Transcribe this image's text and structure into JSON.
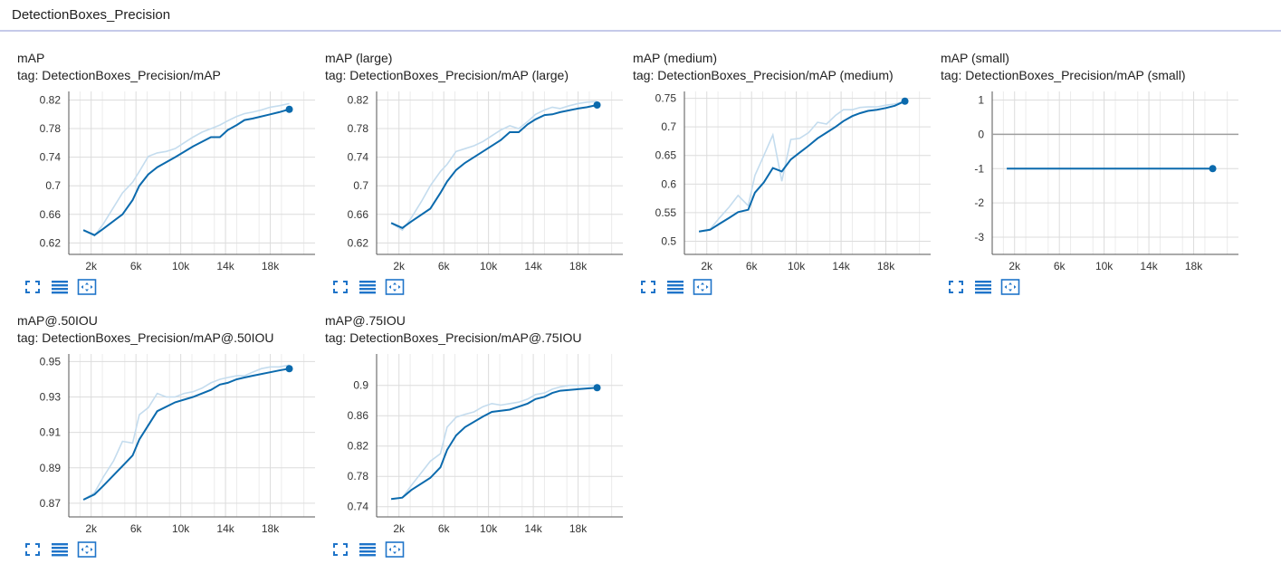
{
  "group": {
    "title": "DetectionBoxes_Precision"
  },
  "colors": {
    "line": "#0b6aad",
    "raw_line": "#c4dcee",
    "grid": "#dcdcdc",
    "axis": "#555555",
    "icon": "#1f74c9",
    "header_border": "#c5cae9"
  },
  "toolbar_icons": [
    "fullscreen-icon",
    "list-icon",
    "fit-domain-icon"
  ],
  "chart_data": [
    {
      "type": "line",
      "title": "mAP",
      "tag": "tag: DetectionBoxes_Precision/mAP",
      "xlim": [
        0,
        22000
      ],
      "ylim": [
        0.604,
        0.832
      ],
      "x_ticks": [
        2000,
        6000,
        10000,
        14000,
        18000
      ],
      "x_tick_labels": [
        "2k",
        "6k",
        "10k",
        "14k",
        "18k"
      ],
      "y_ticks": [
        0.62,
        0.66,
        0.7,
        0.74,
        0.78,
        0.82
      ],
      "y_tick_labels": [
        "0.62",
        "0.66",
        "0.7",
        "0.74",
        "0.78",
        "0.82"
      ],
      "series": [
        {
          "x": [
            1300,
            2300,
            3100,
            4000,
            4800,
            5700,
            6300,
            7100,
            7900,
            8700,
            9500,
            10300,
            11100,
            11900,
            12700,
            13500,
            14200,
            15000,
            15700,
            16400,
            17200,
            18000,
            18800,
            19700
          ],
          "values": [
            0.638,
            0.63,
            0.647,
            0.67,
            0.69,
            0.705,
            0.72,
            0.741,
            0.746,
            0.748,
            0.752,
            0.76,
            0.768,
            0.775,
            0.78,
            0.785,
            0.791,
            0.797,
            0.801,
            0.803,
            0.806,
            0.81,
            0.812,
            0.815
          ]
        }
      ],
      "smoothed": {
        "x": [
          1300,
          2300,
          3100,
          4800,
          5700,
          6300,
          7100,
          7900,
          9500,
          11100,
          12700,
          13500,
          14200,
          15000,
          15700,
          16400,
          18000,
          18800,
          19700
        ],
        "values": [
          0.638,
          0.631,
          0.64,
          0.66,
          0.68,
          0.7,
          0.716,
          0.726,
          0.74,
          0.755,
          0.768,
          0.768,
          0.778,
          0.785,
          0.792,
          0.794,
          0.8,
          0.803,
          0.807
        ]
      }
    },
    {
      "type": "line",
      "title": "mAP (large)",
      "tag": "tag: DetectionBoxes_Precision/mAP (large)",
      "xlim": [
        0,
        22000
      ],
      "ylim": [
        0.604,
        0.832
      ],
      "x_ticks": [
        2000,
        6000,
        10000,
        14000,
        18000
      ],
      "x_tick_labels": [
        "2k",
        "6k",
        "10k",
        "14k",
        "18k"
      ],
      "y_ticks": [
        0.62,
        0.66,
        0.7,
        0.74,
        0.78,
        0.82
      ],
      "y_tick_labels": [
        "0.62",
        "0.66",
        "0.7",
        "0.74",
        "0.78",
        "0.82"
      ],
      "series": [
        {
          "x": [
            1300,
            2300,
            3100,
            4000,
            4800,
            5700,
            6300,
            7100,
            7900,
            8700,
            9500,
            10300,
            11100,
            11900,
            12700,
            13500,
            14200,
            15000,
            15700,
            16400,
            17200,
            18000,
            18800,
            19700
          ],
          "values": [
            0.648,
            0.638,
            0.655,
            0.678,
            0.7,
            0.72,
            0.73,
            0.748,
            0.752,
            0.756,
            0.762,
            0.77,
            0.778,
            0.784,
            0.78,
            0.79,
            0.8,
            0.806,
            0.81,
            0.808,
            0.812,
            0.815,
            0.817,
            0.818
          ]
        }
      ],
      "smoothed": {
        "x": [
          1300,
          2300,
          3100,
          4800,
          5700,
          6300,
          7100,
          7900,
          9500,
          11100,
          11900,
          12700,
          13500,
          14200,
          15000,
          15700,
          16400,
          18000,
          18800,
          19700
        ],
        "values": [
          0.648,
          0.641,
          0.65,
          0.668,
          0.69,
          0.706,
          0.722,
          0.732,
          0.748,
          0.764,
          0.775,
          0.775,
          0.786,
          0.793,
          0.799,
          0.8,
          0.803,
          0.808,
          0.81,
          0.813
        ]
      }
    },
    {
      "type": "line",
      "title": "mAP (medium)",
      "tag": "tag: DetectionBoxes_Precision/mAP (medium)",
      "xlim": [
        0,
        22000
      ],
      "ylim": [
        0.477,
        0.762
      ],
      "x_ticks": [
        2000,
        6000,
        10000,
        14000,
        18000
      ],
      "x_tick_labels": [
        "2k",
        "6k",
        "10k",
        "14k",
        "18k"
      ],
      "y_ticks": [
        0.5,
        0.55,
        0.6,
        0.65,
        0.7,
        0.75
      ],
      "y_tick_labels": [
        "0.5",
        "0.55",
        "0.6",
        "0.65",
        "0.7",
        "0.75"
      ],
      "series": [
        {
          "x": [
            1300,
            2300,
            3100,
            4000,
            4800,
            5700,
            6300,
            7100,
            7900,
            8700,
            9500,
            10300,
            11100,
            11900,
            12700,
            13500,
            14200,
            15000,
            15700,
            16400,
            17200,
            18000,
            18800,
            19700
          ],
          "values": [
            0.517,
            0.521,
            0.54,
            0.56,
            0.58,
            0.562,
            0.615,
            0.65,
            0.686,
            0.605,
            0.678,
            0.68,
            0.69,
            0.708,
            0.705,
            0.72,
            0.73,
            0.73,
            0.734,
            0.735,
            0.735,
            0.738,
            0.74,
            0.745
          ]
        }
      ],
      "smoothed": {
        "x": [
          1300,
          2300,
          3100,
          4000,
          4800,
          5700,
          6300,
          7100,
          7900,
          8700,
          9500,
          10300,
          11100,
          11900,
          12700,
          13500,
          14200,
          15000,
          15700,
          16400,
          17200,
          18000,
          18800,
          19700
        ],
        "values": [
          0.517,
          0.52,
          0.53,
          0.541,
          0.551,
          0.555,
          0.585,
          0.603,
          0.628,
          0.622,
          0.643,
          0.655,
          0.667,
          0.68,
          0.69,
          0.7,
          0.71,
          0.719,
          0.724,
          0.728,
          0.73,
          0.733,
          0.737,
          0.745
        ]
      }
    },
    {
      "type": "line",
      "title": "mAP (small)",
      "tag": "tag: DetectionBoxes_Precision/mAP (small)",
      "xlim": [
        0,
        22000
      ],
      "ylim": [
        -3.5,
        1.25
      ],
      "x_ticks": [
        2000,
        6000,
        10000,
        14000,
        18000
      ],
      "x_tick_labels": [
        "2k",
        "6k",
        "10k",
        "14k",
        "18k"
      ],
      "y_ticks": [
        -3,
        -2,
        -1,
        0,
        1
      ],
      "y_tick_labels": [
        "-3",
        "-2",
        "-1",
        "0",
        "1"
      ],
      "zero_line": true,
      "series": [
        {
          "x": [
            1300,
            19700
          ],
          "values": [
            -1,
            -1
          ]
        }
      ],
      "smoothed": {
        "x": [
          1300,
          19700
        ],
        "values": [
          -1,
          -1
        ]
      }
    },
    {
      "type": "line",
      "title": "mAP@.50IOU",
      "tag": "tag: DetectionBoxes_Precision/mAP@.50IOU",
      "xlim": [
        0,
        22000
      ],
      "ylim": [
        0.8623,
        0.9543
      ],
      "x_ticks": [
        2000,
        6000,
        10000,
        14000,
        18000
      ],
      "x_tick_labels": [
        "2k",
        "6k",
        "10k",
        "14k",
        "18k"
      ],
      "y_ticks": [
        0.87,
        0.89,
        0.91,
        0.93,
        0.95
      ],
      "y_tick_labels": [
        "0.87",
        "0.89",
        "0.91",
        "0.93",
        "0.95"
      ],
      "series": [
        {
          "x": [
            1300,
            2300,
            3100,
            4000,
            4800,
            5700,
            6300,
            7100,
            7900,
            8700,
            9500,
            10300,
            11100,
            11900,
            12700,
            13500,
            14200,
            15000,
            15700,
            16400,
            17200,
            18000,
            18800,
            19700
          ],
          "values": [
            0.872,
            0.876,
            0.885,
            0.894,
            0.905,
            0.904,
            0.92,
            0.924,
            0.932,
            0.93,
            0.93,
            0.932,
            0.933,
            0.935,
            0.938,
            0.94,
            0.941,
            0.942,
            0.942,
            0.944,
            0.946,
            0.947,
            0.947,
            0.948
          ]
        }
      ],
      "smoothed": {
        "x": [
          1300,
          2300,
          3100,
          4800,
          5700,
          6300,
          7100,
          7900,
          9500,
          11100,
          12700,
          13500,
          14200,
          15000,
          15700,
          16400,
          18000,
          18800,
          19700
        ],
        "values": [
          0.872,
          0.875,
          0.88,
          0.891,
          0.897,
          0.906,
          0.914,
          0.922,
          0.927,
          0.93,
          0.934,
          0.937,
          0.938,
          0.94,
          0.941,
          0.942,
          0.944,
          0.945,
          0.946
        ]
      }
    },
    {
      "type": "line",
      "title": "mAP@.75IOU",
      "tag": "tag: DetectionBoxes_Precision/mAP@.75IOU",
      "xlim": [
        0,
        22000
      ],
      "ylim": [
        0.7265,
        0.9415
      ],
      "x_ticks": [
        2000,
        6000,
        10000,
        14000,
        18000
      ],
      "x_tick_labels": [
        "2k",
        "6k",
        "10k",
        "14k",
        "18k"
      ],
      "y_ticks": [
        0.74,
        0.78,
        0.82,
        0.86,
        0.9
      ],
      "y_tick_labels": [
        "0.74",
        "0.78",
        "0.82",
        "0.86",
        "0.9"
      ],
      "series": [
        {
          "x": [
            1300,
            2300,
            3100,
            4000,
            4800,
            5700,
            6300,
            7100,
            7900,
            8700,
            9500,
            10300,
            11100,
            11900,
            12700,
            13500,
            14200,
            15000,
            15700,
            16400,
            17200,
            18000,
            18800,
            19700
          ],
          "values": [
            0.75,
            0.752,
            0.768,
            0.785,
            0.8,
            0.81,
            0.845,
            0.858,
            0.862,
            0.865,
            0.872,
            0.876,
            0.874,
            0.876,
            0.878,
            0.882,
            0.888,
            0.89,
            0.895,
            0.898,
            0.9,
            0.9,
            0.9,
            0.9
          ]
        }
      ],
      "smoothed": {
        "x": [
          1300,
          2300,
          3100,
          4800,
          5700,
          6300,
          7100,
          7900,
          9500,
          10300,
          11900,
          12700,
          13500,
          14200,
          15000,
          15700,
          16400,
          18000,
          18800,
          19700
        ],
        "values": [
          0.75,
          0.752,
          0.762,
          0.778,
          0.792,
          0.815,
          0.834,
          0.845,
          0.859,
          0.865,
          0.868,
          0.872,
          0.876,
          0.882,
          0.885,
          0.89,
          0.893,
          0.895,
          0.896,
          0.897
        ]
      }
    }
  ]
}
